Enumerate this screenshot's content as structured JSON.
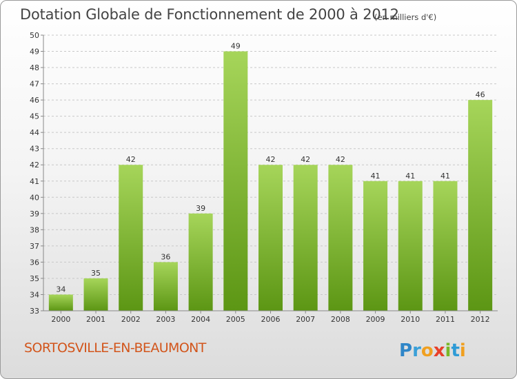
{
  "header": {
    "title": "Dotation Globale de Fonctionnement de 2000 à 2012",
    "unit": "(en milliers d'€)"
  },
  "footer": {
    "commune": "SORTOSVILLE-EN-BEAUMONT",
    "brand": "Proxiti"
  },
  "colors": {
    "bar_top": "#a6d55a",
    "bar_bottom": "#5c9614",
    "grid": "#c8c8c8",
    "axis": "#888888",
    "text": "#333333",
    "commune": "#d2551b"
  },
  "chart_data": {
    "type": "bar",
    "title": "Dotation Globale de Fonctionnement de 2000 à 2012",
    "subtitle": "(en milliers d'€)",
    "xlabel": "",
    "ylabel": "",
    "categories": [
      "2000",
      "2001",
      "2002",
      "2003",
      "2004",
      "2005",
      "2006",
      "2007",
      "2008",
      "2009",
      "2010",
      "2011",
      "2012"
    ],
    "values": [
      34,
      35,
      42,
      36,
      39,
      49,
      42,
      42,
      42,
      41,
      41,
      41,
      46
    ],
    "ylim": [
      33,
      50
    ],
    "yticks": [
      33,
      34,
      35,
      36,
      37,
      38,
      39,
      40,
      41,
      42,
      43,
      44,
      45,
      46,
      47,
      48,
      49,
      50
    ],
    "grid": true,
    "data_labels": true
  }
}
